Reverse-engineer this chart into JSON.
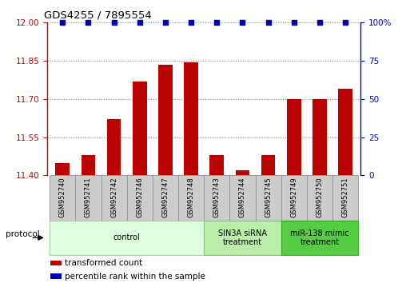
{
  "title": "GDS4255 / 7895554",
  "samples": [
    "GSM952740",
    "GSM952741",
    "GSM952742",
    "GSM952746",
    "GSM952747",
    "GSM952748",
    "GSM952743",
    "GSM952744",
    "GSM952745",
    "GSM952749",
    "GSM952750",
    "GSM952751"
  ],
  "bar_values": [
    11.45,
    11.48,
    11.62,
    11.77,
    11.835,
    11.845,
    11.48,
    11.42,
    11.48,
    11.7,
    11.7,
    11.74
  ],
  "bar_color": "#bb0000",
  "percentile_color": "#0000bb",
  "ylim_left": [
    11.4,
    12.0
  ],
  "ylim_right": [
    0,
    100
  ],
  "yticks_left": [
    11.4,
    11.55,
    11.7,
    11.85,
    12.0
  ],
  "yticks_right": [
    0,
    25,
    50,
    75,
    100
  ],
  "groups": [
    {
      "label": "control",
      "start": 0,
      "end": 5,
      "color": "#ddffdd",
      "border": "#aaccaa"
    },
    {
      "label": "SIN3A siRNA\ntreatment",
      "start": 6,
      "end": 8,
      "color": "#bbeeaa",
      "border": "#88bb88"
    },
    {
      "label": "miR-138 mimic\ntreatment",
      "start": 9,
      "end": 11,
      "color": "#55cc44",
      "border": "#33aa22"
    }
  ],
  "protocol_label": "protocol",
  "legend_items": [
    {
      "label": "transformed count",
      "color": "#bb0000"
    },
    {
      "label": "percentile rank within the sample",
      "color": "#0000bb"
    }
  ],
  "bar_width": 0.55,
  "background_color": "#ffffff",
  "grid_color": "#888888",
  "yaxis_left_color": "#cc0000",
  "yaxis_right_color": "#0000cc",
  "sample_box_color": "#cccccc",
  "sample_box_border": "#999999"
}
